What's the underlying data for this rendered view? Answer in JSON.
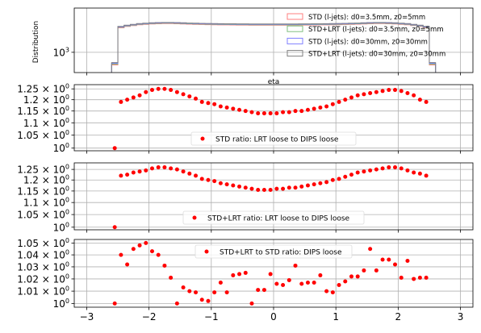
{
  "chart_data": [
    {
      "type": "histogram",
      "xlabel": "eta",
      "ylabel": "Distribution",
      "yscale": "log",
      "xlim": [
        -3.2,
        3.2
      ],
      "yticks": [
        {
          "value": 1000,
          "label": "10",
          "exp": "3"
        }
      ],
      "xticks": [
        -3,
        -2,
        -1,
        0,
        1,
        2,
        3
      ],
      "grid": true,
      "legend_position": "upper-right",
      "bin_edges": [
        -2.6,
        -2.5,
        -2.4,
        -2.3,
        -2.2,
        -2.1,
        -2.0,
        -1.9,
        -1.8,
        -1.7,
        -1.6,
        -1.5,
        -1.4,
        -1.3,
        -1.2,
        -1.1,
        -1.0,
        -0.9,
        -0.8,
        -0.7,
        -0.6,
        -0.5,
        -0.4,
        -0.3,
        -0.2,
        -0.1,
        0.0,
        0.1,
        0.2,
        0.3,
        0.4,
        0.5,
        0.6,
        0.7,
        0.8,
        0.9,
        1.0,
        1.1,
        1.2,
        1.3,
        1.4,
        1.5,
        1.6,
        1.7,
        1.8,
        1.9,
        2.0,
        2.1,
        2.2,
        2.3,
        2.4,
        2.5,
        2.6
      ],
      "series": [
        {
          "name": "STD (l-jets): d0=3.5mm, z0=5mm",
          "color": "#ff7f7f",
          "values": [
            600,
            2700,
            2850,
            2950,
            3050,
            3100,
            3150,
            3180,
            3200,
            3200,
            3180,
            3150,
            3120,
            3100,
            3080,
            3060,
            3050,
            3040,
            3030,
            3020,
            3010,
            3010,
            3000,
            3000,
            3000,
            3000,
            3000,
            3000,
            3000,
            3000,
            3010,
            3010,
            3020,
            3030,
            3040,
            3050,
            3060,
            3080,
            3100,
            3120,
            3150,
            3180,
            3200,
            3200,
            3180,
            3150,
            3100,
            3050,
            2950,
            2850,
            2700,
            600
          ]
        },
        {
          "name": "STD+LRT (l-jets): d0=3.5mm, z0=5mm",
          "color": "#7fbf7f",
          "values": [
            620,
            2750,
            2900,
            3000,
            3100,
            3150,
            3200,
            3230,
            3250,
            3250,
            3230,
            3200,
            3170,
            3150,
            3130,
            3110,
            3100,
            3090,
            3080,
            3070,
            3060,
            3060,
            3050,
            3050,
            3050,
            3050,
            3050,
            3050,
            3050,
            3050,
            3060,
            3060,
            3070,
            3080,
            3090,
            3100,
            3110,
            3130,
            3150,
            3170,
            3200,
            3230,
            3250,
            3250,
            3230,
            3200,
            3150,
            3100,
            3000,
            2900,
            2750,
            620
          ]
        },
        {
          "name": "STD (l-jets): d0=30mm, z0=30mm",
          "color": "#7f7fff",
          "values": [
            640,
            2800,
            2950,
            3050,
            3150,
            3200,
            3250,
            3280,
            3300,
            3300,
            3280,
            3250,
            3220,
            3200,
            3180,
            3160,
            3150,
            3140,
            3130,
            3120,
            3110,
            3110,
            3100,
            3100,
            3100,
            3100,
            3100,
            3100,
            3100,
            3100,
            3110,
            3110,
            3120,
            3130,
            3140,
            3150,
            3160,
            3180,
            3200,
            3220,
            3250,
            3280,
            3300,
            3300,
            3280,
            3250,
            3200,
            3150,
            3050,
            2950,
            2800,
            640
          ]
        },
        {
          "name": "STD+LRT (l-jets): d0=30mm, z0=30mm",
          "color": "#7f7f7f",
          "values": [
            660,
            2850,
            3000,
            3100,
            3200,
            3250,
            3300,
            3330,
            3350,
            3350,
            3330,
            3300,
            3270,
            3250,
            3230,
            3210,
            3200,
            3190,
            3180,
            3170,
            3160,
            3160,
            3150,
            3150,
            3150,
            3150,
            3150,
            3150,
            3150,
            3150,
            3160,
            3160,
            3170,
            3180,
            3190,
            3200,
            3210,
            3230,
            3250,
            3270,
            3300,
            3330,
            3350,
            3350,
            3330,
            3300,
            3250,
            3200,
            3100,
            3000,
            2850,
            660
          ]
        }
      ]
    },
    {
      "type": "scatter",
      "yscale": "log",
      "xlim": [
        -3.2,
        3.2
      ],
      "xticks": [
        -3,
        -2,
        -1,
        0,
        1,
        2,
        3
      ],
      "yticks": [
        {
          "value": 1.0,
          "label": "10",
          "exp": "0"
        },
        {
          "value": 1.05,
          "label": "1.05 × 10",
          "exp": "0"
        },
        {
          "value": 1.1,
          "label": "1.1 × 10",
          "exp": "0"
        },
        {
          "value": 1.15,
          "label": "1.15 × 10",
          "exp": "0"
        },
        {
          "value": 1.2,
          "label": "1.2 × 10",
          "exp": "0"
        },
        {
          "value": 1.25,
          "label": "1.25 × 10",
          "exp": "0"
        }
      ],
      "grid": true,
      "legend_position": "lower-center",
      "series": [
        {
          "name": "STD ratio: LRT loose to DIPS loose",
          "color": "#ff0000",
          "x": [
            -2.55,
            -2.45,
            -2.35,
            -2.25,
            -2.15,
            -2.05,
            -1.95,
            -1.85,
            -1.75,
            -1.65,
            -1.55,
            -1.45,
            -1.35,
            -1.25,
            -1.15,
            -1.05,
            -0.95,
            -0.85,
            -0.75,
            -0.65,
            -0.55,
            -0.45,
            -0.35,
            -0.25,
            -0.15,
            -0.05,
            0.05,
            0.15,
            0.25,
            0.35,
            0.45,
            0.55,
            0.65,
            0.75,
            0.85,
            0.95,
            1.05,
            1.15,
            1.25,
            1.35,
            1.45,
            1.55,
            1.65,
            1.75,
            1.85,
            1.95,
            2.05,
            2.15,
            2.25,
            2.35,
            2.45
          ],
          "y": [
            1.0,
            1.19,
            1.2,
            1.21,
            1.22,
            1.235,
            1.245,
            1.25,
            1.25,
            1.245,
            1.235,
            1.225,
            1.215,
            1.205,
            1.19,
            1.185,
            1.18,
            1.17,
            1.165,
            1.16,
            1.155,
            1.15,
            1.145,
            1.14,
            1.14,
            1.14,
            1.14,
            1.145,
            1.145,
            1.15,
            1.15,
            1.155,
            1.16,
            1.165,
            1.17,
            1.18,
            1.19,
            1.2,
            1.21,
            1.22,
            1.225,
            1.23,
            1.235,
            1.24,
            1.245,
            1.245,
            1.24,
            1.23,
            1.22,
            1.2,
            1.19
          ]
        }
      ]
    },
    {
      "type": "scatter",
      "yscale": "log",
      "xlim": [
        -3.2,
        3.2
      ],
      "xticks": [
        -3,
        -2,
        -1,
        0,
        1,
        2,
        3
      ],
      "yticks": [
        {
          "value": 1.0,
          "label": "10",
          "exp": "0"
        },
        {
          "value": 1.05,
          "label": "1.05 × 10",
          "exp": "0"
        },
        {
          "value": 1.1,
          "label": "1.1 × 10",
          "exp": "0"
        },
        {
          "value": 1.15,
          "label": "1.15 × 10",
          "exp": "0"
        },
        {
          "value": 1.2,
          "label": "1.2 × 10",
          "exp": "0"
        },
        {
          "value": 1.25,
          "label": "1.25 × 10",
          "exp": "0"
        }
      ],
      "grid": true,
      "legend_position": "lower-center",
      "series": [
        {
          "name": "STD+LRT ratio: LRT loose to DIPS loose",
          "color": "#ff0000",
          "x": [
            -2.55,
            -2.45,
            -2.35,
            -2.25,
            -2.15,
            -2.05,
            -1.95,
            -1.85,
            -1.75,
            -1.65,
            -1.55,
            -1.45,
            -1.35,
            -1.25,
            -1.15,
            -1.05,
            -0.95,
            -0.85,
            -0.75,
            -0.65,
            -0.55,
            -0.45,
            -0.35,
            -0.25,
            -0.15,
            -0.05,
            0.05,
            0.15,
            0.25,
            0.35,
            0.45,
            0.55,
            0.65,
            0.75,
            0.85,
            0.95,
            1.05,
            1.15,
            1.25,
            1.35,
            1.45,
            1.55,
            1.65,
            1.75,
            1.85,
            1.95,
            2.05,
            2.15,
            2.25,
            2.35,
            2.45
          ],
          "y": [
            1.0,
            1.22,
            1.225,
            1.235,
            1.24,
            1.245,
            1.255,
            1.26,
            1.26,
            1.255,
            1.25,
            1.24,
            1.23,
            1.22,
            1.205,
            1.2,
            1.195,
            1.185,
            1.18,
            1.175,
            1.17,
            1.165,
            1.16,
            1.155,
            1.155,
            1.155,
            1.16,
            1.16,
            1.165,
            1.165,
            1.17,
            1.175,
            1.18,
            1.185,
            1.19,
            1.2,
            1.205,
            1.215,
            1.225,
            1.235,
            1.24,
            1.245,
            1.25,
            1.255,
            1.26,
            1.26,
            1.255,
            1.245,
            1.235,
            1.23,
            1.22
          ]
        }
      ]
    },
    {
      "type": "scatter",
      "yscale": "log",
      "xlim": [
        -3.2,
        3.2
      ],
      "xticks": [
        -3,
        -2,
        -1,
        0,
        1,
        2,
        3
      ],
      "yticks": [
        {
          "value": 1.0,
          "label": "10",
          "exp": "0"
        },
        {
          "value": 1.01,
          "label": "1.01 × 10",
          "exp": "0"
        },
        {
          "value": 1.02,
          "label": "1.02 × 10",
          "exp": "0"
        },
        {
          "value": 1.03,
          "label": "1.03 × 10",
          "exp": "0"
        },
        {
          "value": 1.04,
          "label": "1.04 × 10",
          "exp": "0"
        },
        {
          "value": 1.05,
          "label": "1.05 × 10",
          "exp": "0"
        }
      ],
      "grid": true,
      "legend_position": "upper-center",
      "series": [
        {
          "name": "STD+LRT to STD ratio: DIPS loose",
          "color": "#ff0000",
          "x": [
            -2.55,
            -2.45,
            -2.35,
            -2.25,
            -2.15,
            -2.05,
            -1.95,
            -1.85,
            -1.75,
            -1.65,
            -1.55,
            -1.45,
            -1.35,
            -1.25,
            -1.15,
            -1.05,
            -0.95,
            -0.85,
            -0.75,
            -0.65,
            -0.55,
            -0.45,
            -0.35,
            -0.25,
            -0.15,
            -0.05,
            0.05,
            0.15,
            0.25,
            0.35,
            0.45,
            0.55,
            0.65,
            0.75,
            0.85,
            0.95,
            1.05,
            1.15,
            1.25,
            1.35,
            1.45,
            1.55,
            1.65,
            1.75,
            1.85,
            1.95,
            2.05,
            2.15,
            2.25,
            2.35,
            2.45
          ],
          "y": [
            1.0,
            1.04,
            1.032,
            1.045,
            1.048,
            1.05,
            1.043,
            1.04,
            1.031,
            1.021,
            1.0,
            1.013,
            1.01,
            1.009,
            1.003,
            1.002,
            1.009,
            1.017,
            1.009,
            1.023,
            1.024,
            1.025,
            1.0,
            1.011,
            1.011,
            1.024,
            1.016,
            1.015,
            1.019,
            1.031,
            1.016,
            1.017,
            1.017,
            1.023,
            1.01,
            1.009,
            1.015,
            1.018,
            1.022,
            1.022,
            1.027,
            1.045,
            1.027,
            1.036,
            1.036,
            1.032,
            1.021,
            1.035,
            1.02,
            1.021,
            1.021
          ]
        }
      ]
    }
  ]
}
